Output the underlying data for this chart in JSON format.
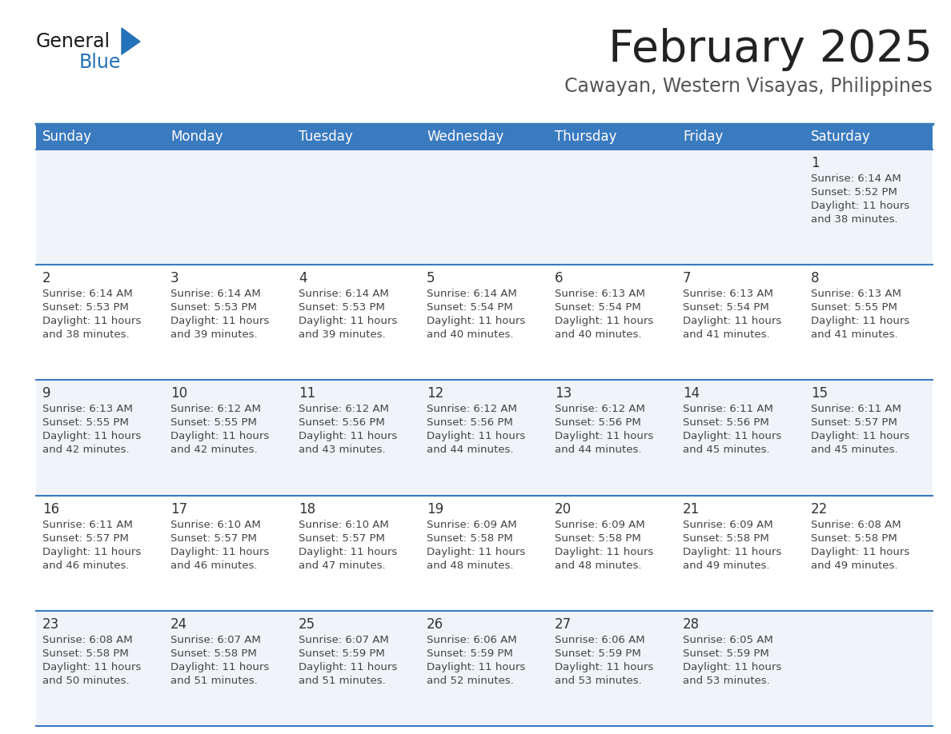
{
  "title": "February 2025",
  "subtitle": "Cawayan, Western Visayas, Philippines",
  "days_of_week": [
    "Sunday",
    "Monday",
    "Tuesday",
    "Wednesday",
    "Thursday",
    "Friday",
    "Saturday"
  ],
  "header_bg": "#3a7abf",
  "header_text_color": "#ffffff",
  "cell_bg_gray": "#f0f4f8",
  "cell_bg_white": "#ffffff",
  "separator_color": "#3a7abf",
  "title_color": "#222222",
  "subtitle_color": "#555555",
  "day_num_color": "#333333",
  "cell_text_color": "#444444",
  "calendar_data": [
    {
      "day": 1,
      "col": 6,
      "row": 0,
      "sunrise": "6:14 AM",
      "sunset": "5:52 PM",
      "daylight_h": "11 hours",
      "daylight_m": "and 38 minutes."
    },
    {
      "day": 2,
      "col": 0,
      "row": 1,
      "sunrise": "6:14 AM",
      "sunset": "5:53 PM",
      "daylight_h": "11 hours",
      "daylight_m": "and 38 minutes."
    },
    {
      "day": 3,
      "col": 1,
      "row": 1,
      "sunrise": "6:14 AM",
      "sunset": "5:53 PM",
      "daylight_h": "11 hours",
      "daylight_m": "and 39 minutes."
    },
    {
      "day": 4,
      "col": 2,
      "row": 1,
      "sunrise": "6:14 AM",
      "sunset": "5:53 PM",
      "daylight_h": "11 hours",
      "daylight_m": "and 39 minutes."
    },
    {
      "day": 5,
      "col": 3,
      "row": 1,
      "sunrise": "6:14 AM",
      "sunset": "5:54 PM",
      "daylight_h": "11 hours",
      "daylight_m": "and 40 minutes."
    },
    {
      "day": 6,
      "col": 4,
      "row": 1,
      "sunrise": "6:13 AM",
      "sunset": "5:54 PM",
      "daylight_h": "11 hours",
      "daylight_m": "and 40 minutes."
    },
    {
      "day": 7,
      "col": 5,
      "row": 1,
      "sunrise": "6:13 AM",
      "sunset": "5:54 PM",
      "daylight_h": "11 hours",
      "daylight_m": "and 41 minutes."
    },
    {
      "day": 8,
      "col": 6,
      "row": 1,
      "sunrise": "6:13 AM",
      "sunset": "5:55 PM",
      "daylight_h": "11 hours",
      "daylight_m": "and 41 minutes."
    },
    {
      "day": 9,
      "col": 0,
      "row": 2,
      "sunrise": "6:13 AM",
      "sunset": "5:55 PM",
      "daylight_h": "11 hours",
      "daylight_m": "and 42 minutes."
    },
    {
      "day": 10,
      "col": 1,
      "row": 2,
      "sunrise": "6:12 AM",
      "sunset": "5:55 PM",
      "daylight_h": "11 hours",
      "daylight_m": "and 42 minutes."
    },
    {
      "day": 11,
      "col": 2,
      "row": 2,
      "sunrise": "6:12 AM",
      "sunset": "5:56 PM",
      "daylight_h": "11 hours",
      "daylight_m": "and 43 minutes."
    },
    {
      "day": 12,
      "col": 3,
      "row": 2,
      "sunrise": "6:12 AM",
      "sunset": "5:56 PM",
      "daylight_h": "11 hours",
      "daylight_m": "and 44 minutes."
    },
    {
      "day": 13,
      "col": 4,
      "row": 2,
      "sunrise": "6:12 AM",
      "sunset": "5:56 PM",
      "daylight_h": "11 hours",
      "daylight_m": "and 44 minutes."
    },
    {
      "day": 14,
      "col": 5,
      "row": 2,
      "sunrise": "6:11 AM",
      "sunset": "5:56 PM",
      "daylight_h": "11 hours",
      "daylight_m": "and 45 minutes."
    },
    {
      "day": 15,
      "col": 6,
      "row": 2,
      "sunrise": "6:11 AM",
      "sunset": "5:57 PM",
      "daylight_h": "11 hours",
      "daylight_m": "and 45 minutes."
    },
    {
      "day": 16,
      "col": 0,
      "row": 3,
      "sunrise": "6:11 AM",
      "sunset": "5:57 PM",
      "daylight_h": "11 hours",
      "daylight_m": "and 46 minutes."
    },
    {
      "day": 17,
      "col": 1,
      "row": 3,
      "sunrise": "6:10 AM",
      "sunset": "5:57 PM",
      "daylight_h": "11 hours",
      "daylight_m": "and 46 minutes."
    },
    {
      "day": 18,
      "col": 2,
      "row": 3,
      "sunrise": "6:10 AM",
      "sunset": "5:57 PM",
      "daylight_h": "11 hours",
      "daylight_m": "and 47 minutes."
    },
    {
      "day": 19,
      "col": 3,
      "row": 3,
      "sunrise": "6:09 AM",
      "sunset": "5:58 PM",
      "daylight_h": "11 hours",
      "daylight_m": "and 48 minutes."
    },
    {
      "day": 20,
      "col": 4,
      "row": 3,
      "sunrise": "6:09 AM",
      "sunset": "5:58 PM",
      "daylight_h": "11 hours",
      "daylight_m": "and 48 minutes."
    },
    {
      "day": 21,
      "col": 5,
      "row": 3,
      "sunrise": "6:09 AM",
      "sunset": "5:58 PM",
      "daylight_h": "11 hours",
      "daylight_m": "and 49 minutes."
    },
    {
      "day": 22,
      "col": 6,
      "row": 3,
      "sunrise": "6:08 AM",
      "sunset": "5:58 PM",
      "daylight_h": "11 hours",
      "daylight_m": "and 49 minutes."
    },
    {
      "day": 23,
      "col": 0,
      "row": 4,
      "sunrise": "6:08 AM",
      "sunset": "5:58 PM",
      "daylight_h": "11 hours",
      "daylight_m": "and 50 minutes."
    },
    {
      "day": 24,
      "col": 1,
      "row": 4,
      "sunrise": "6:07 AM",
      "sunset": "5:58 PM",
      "daylight_h": "11 hours",
      "daylight_m": "and 51 minutes."
    },
    {
      "day": 25,
      "col": 2,
      "row": 4,
      "sunrise": "6:07 AM",
      "sunset": "5:59 PM",
      "daylight_h": "11 hours",
      "daylight_m": "and 51 minutes."
    },
    {
      "day": 26,
      "col": 3,
      "row": 4,
      "sunrise": "6:06 AM",
      "sunset": "5:59 PM",
      "daylight_h": "11 hours",
      "daylight_m": "and 52 minutes."
    },
    {
      "day": 27,
      "col": 4,
      "row": 4,
      "sunrise": "6:06 AM",
      "sunset": "5:59 PM",
      "daylight_h": "11 hours",
      "daylight_m": "and 53 minutes."
    },
    {
      "day": 28,
      "col": 5,
      "row": 4,
      "sunrise": "6:05 AM",
      "sunset": "5:59 PM",
      "daylight_h": "11 hours",
      "daylight_m": "and 53 minutes."
    }
  ],
  "logo_text1": "General",
  "logo_text2": "Blue",
  "logo_color1": "#1a1a1a",
  "logo_color2": "#2472b8",
  "logo_triangle_color": "#2472b8"
}
